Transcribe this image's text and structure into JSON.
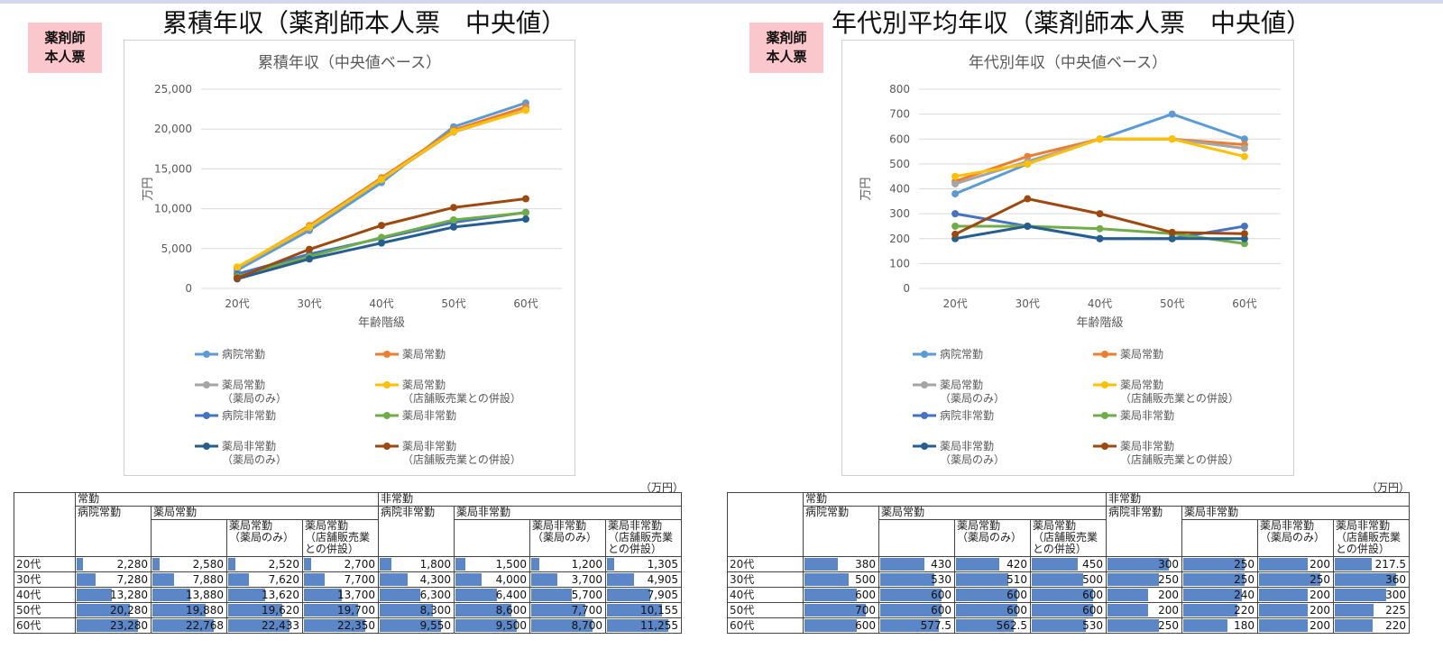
{
  "panels": [
    {
      "big_title": "累積年収（薬剤師本人票　中央値）",
      "badge": "薬剤師\n本人票",
      "unit": "（万円）",
      "table": {
        "group_full": "常勤",
        "group_part": "非常勤",
        "col_hospital_full": "病院常勤",
        "col_pharmacy_full": "薬局常勤",
        "col_pharmacy_only": "薬局常勤\n（薬局のみ）",
        "col_pharmacy_store": "薬局常勤\n（店舗販売業\nとの併設）",
        "col_hospital_part": "病院非常勤",
        "col_pharmacy_part": "薬局非常勤",
        "col_pharmacy_part_only": "薬局非常勤\n（薬局のみ）",
        "col_pharmacy_part_store": "薬局非常勤\n（店舗販売業\nとの併設）",
        "rows": [
          {
            "label": "20代",
            "cells": [
              "2,280",
              "2,580",
              "2,520",
              "2,700",
              "1,800",
              "1,500",
              "1,200",
              "1,305"
            ]
          },
          {
            "label": "30代",
            "cells": [
              "7,280",
              "7,880",
              "7,620",
              "7,700",
              "4,300",
              "4,000",
              "3,700",
              "4,905"
            ]
          },
          {
            "label": "40代",
            "cells": [
              "13,280",
              "13,880",
              "13,620",
              "13,700",
              "6,300",
              "6,400",
              "5,700",
              "7,905"
            ]
          },
          {
            "label": "50代",
            "cells": [
              "20,280",
              "19,880",
              "19,620",
              "19,700",
              "8,300",
              "8,600",
              "7,700",
              "10,155"
            ]
          },
          {
            "label": "60代",
            "cells": [
              "23,280",
              "22,768",
              "22,433",
              "22,350",
              "9,550",
              "9,500",
              "8,700",
              "11,255"
            ]
          }
        ]
      },
      "chart_data": {
        "type": "line",
        "title": "累積年収（中央値ベース）",
        "xlabel": "年齢階級",
        "ylabel": "万円",
        "categories": [
          "20代",
          "30代",
          "40代",
          "50代",
          "60代"
        ],
        "ylim": [
          0,
          25000
        ],
        "yticks": [
          0,
          5000,
          10000,
          15000,
          20000,
          25000
        ],
        "ytick_labels": [
          "0",
          "5,000",
          "10,000",
          "15,000",
          "20,000",
          "25,000"
        ],
        "grid": true,
        "legend_position": "bottom",
        "series": [
          {
            "name": "病院常勤",
            "sub": "",
            "color": "#5b9bd5",
            "values": [
              2280,
              7280,
              13280,
              20280,
              23280
            ]
          },
          {
            "name": "薬局常勤",
            "sub": "",
            "color": "#ed7d31",
            "values": [
              2580,
              7880,
              13880,
              19880,
              22768
            ]
          },
          {
            "name": "薬局常勤",
            "sub": "（薬局のみ）",
            "color": "#a5a5a5",
            "values": [
              2520,
              7620,
              13620,
              19620,
              22433
            ]
          },
          {
            "name": "薬局常勤",
            "sub": "（店舗販売業との併設）",
            "color": "#ffc000",
            "values": [
              2700,
              7700,
              13700,
              19700,
              22350
            ]
          },
          {
            "name": "病院非常勤",
            "sub": "",
            "color": "#4472c4",
            "values": [
              1800,
              4300,
              6300,
              8300,
              9550
            ]
          },
          {
            "name": "薬局非常勤",
            "sub": "",
            "color": "#70ad47",
            "values": [
              1500,
              4000,
              6400,
              8600,
              9500
            ]
          },
          {
            "name": "薬局非常勤",
            "sub": "（薬局のみ）",
            "color": "#255e91",
            "values": [
              1200,
              3700,
              5700,
              7700,
              8700
            ]
          },
          {
            "name": "薬局非常勤",
            "sub": "（店舗販売業との併設）",
            "color": "#9e480e",
            "values": [
              1305,
              4905,
              7905,
              10155,
              11255
            ]
          }
        ]
      }
    },
    {
      "big_title": "年代別平均年収（薬剤師本人票　中央値）",
      "badge": "薬剤師\n本人票",
      "unit": "（万円）",
      "table": {
        "group_full": "常勤",
        "group_part": "非常勤",
        "col_hospital_full": "病院常勤",
        "col_pharmacy_full": "薬局常勤",
        "col_pharmacy_only": "薬局常勤\n（薬局のみ）",
        "col_pharmacy_store": "薬局常勤\n（店舗販売業\nとの併設）",
        "col_hospital_part": "病院非常勤",
        "col_pharmacy_part": "薬局非常勤",
        "col_pharmacy_part_only": "薬局非常勤\n（薬局のみ）",
        "col_pharmacy_part_store": "薬局非常勤\n（店舗販売業\nとの併設）",
        "rows": [
          {
            "label": "20代",
            "cells": [
              "380",
              "430",
              "420",
              "450",
              "300",
              "250",
              "200",
              "217.5"
            ]
          },
          {
            "label": "30代",
            "cells": [
              "500",
              "530",
              "510",
              "500",
              "250",
              "250",
              "250",
              "360"
            ]
          },
          {
            "label": "40代",
            "cells": [
              "600",
              "600",
              "600",
              "600",
              "200",
              "240",
              "200",
              "300"
            ]
          },
          {
            "label": "50代",
            "cells": [
              "700",
              "600",
              "600",
              "600",
              "200",
              "220",
              "200",
              "225"
            ]
          },
          {
            "label": "60代",
            "cells": [
              "600",
              "577.5",
              "562.5",
              "530",
              "250",
              "180",
              "200",
              "220"
            ]
          }
        ]
      },
      "chart_data": {
        "type": "line",
        "title": "年代別年収（中央値ベース）",
        "xlabel": "年齢階級",
        "ylabel": "万円",
        "categories": [
          "20代",
          "30代",
          "40代",
          "50代",
          "60代"
        ],
        "ylim": [
          0,
          800
        ],
        "yticks": [
          0,
          100,
          200,
          300,
          400,
          500,
          600,
          700,
          800
        ],
        "ytick_labels": [
          "0",
          "100",
          "200",
          "300",
          "400",
          "500",
          "600",
          "700",
          "800"
        ],
        "grid": true,
        "legend_position": "bottom",
        "series": [
          {
            "name": "病院常勤",
            "sub": "",
            "color": "#5b9bd5",
            "values": [
              380,
              500,
              600,
              700,
              600
            ]
          },
          {
            "name": "薬局常勤",
            "sub": "",
            "color": "#ed7d31",
            "values": [
              430,
              530,
              600,
              600,
              577.5
            ]
          },
          {
            "name": "薬局常勤",
            "sub": "（薬局のみ）",
            "color": "#a5a5a5",
            "values": [
              420,
              510,
              600,
              600,
              562.5
            ]
          },
          {
            "name": "薬局常勤",
            "sub": "（店舗販売業との併設）",
            "color": "#ffc000",
            "values": [
              450,
              500,
              600,
              600,
              530
            ]
          },
          {
            "name": "病院非常勤",
            "sub": "",
            "color": "#4472c4",
            "values": [
              300,
              250,
              200,
              200,
              250
            ]
          },
          {
            "name": "薬局非常勤",
            "sub": "",
            "color": "#70ad47",
            "values": [
              250,
              250,
              240,
              220,
              180
            ]
          },
          {
            "name": "薬局非常勤",
            "sub": "（薬局のみ）",
            "color": "#255e91",
            "values": [
              200,
              250,
              200,
              200,
              200
            ]
          },
          {
            "name": "薬局非常勤",
            "sub": "（店舗販売業との併設）",
            "color": "#9e480e",
            "values": [
              217.5,
              360,
              300,
              225,
              220
            ]
          }
        ]
      }
    }
  ]
}
